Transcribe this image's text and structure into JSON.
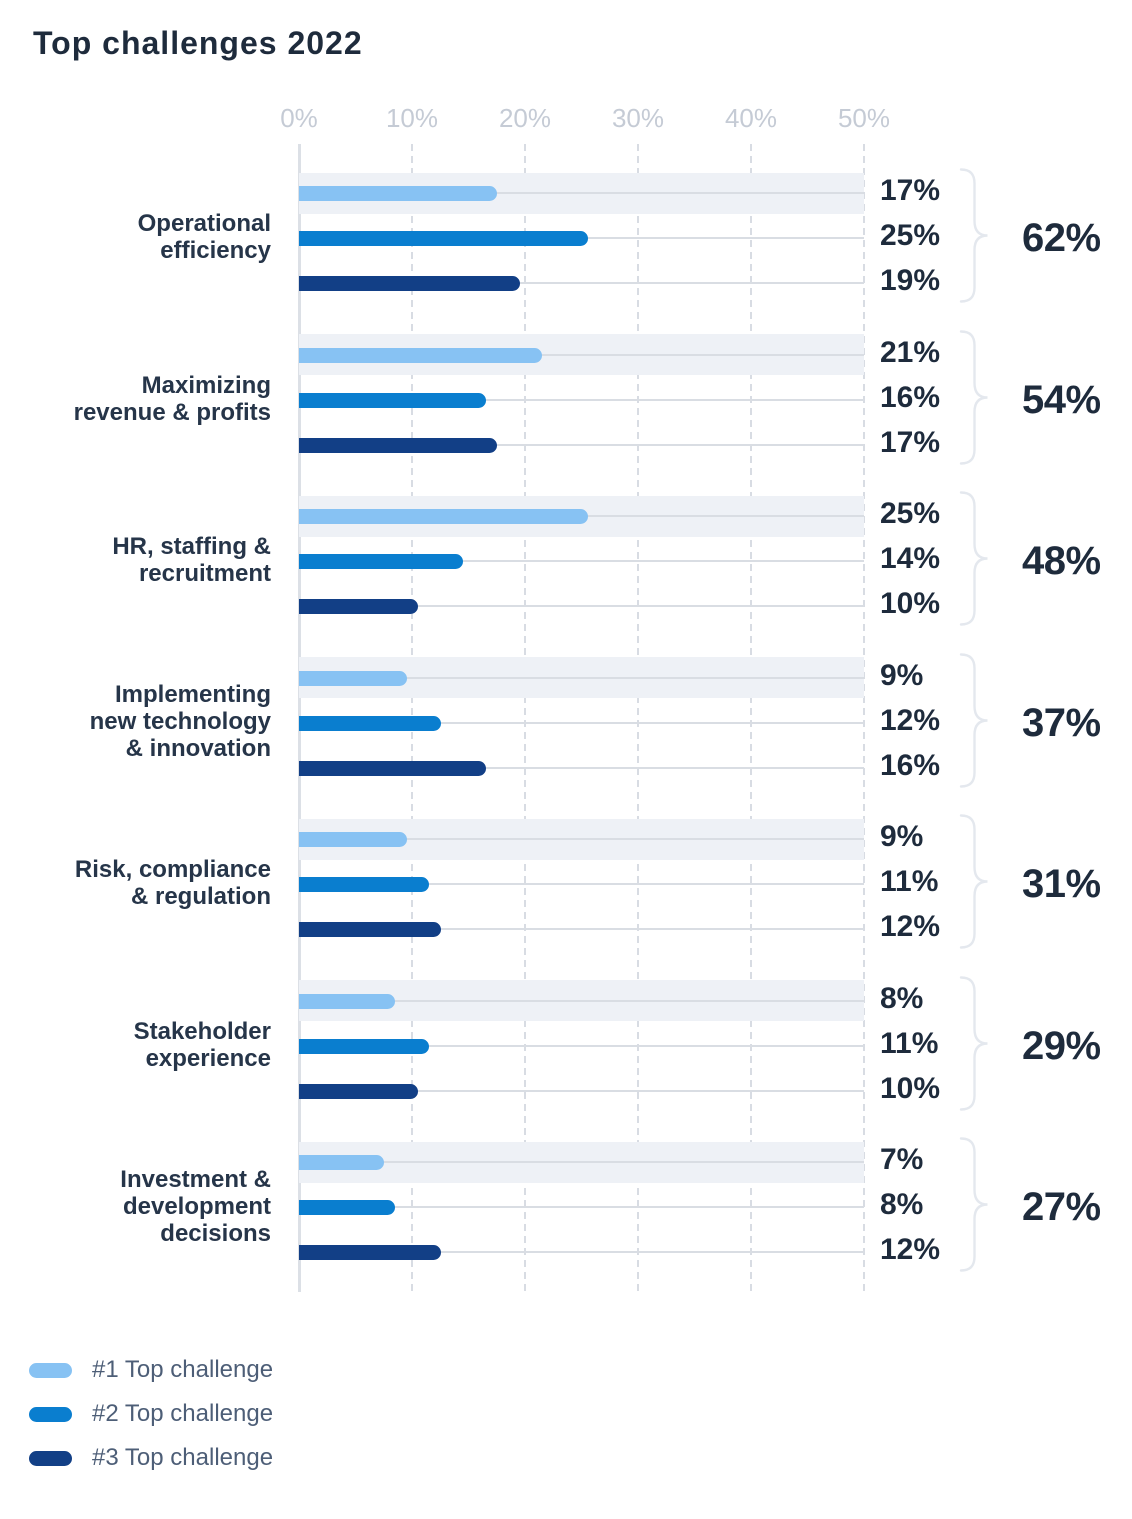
{
  "title": "Top challenges 2022",
  "chart_data": {
    "type": "bar",
    "orientation": "horizontal",
    "title": "Top challenges 2022",
    "x_axis": {
      "ticks": [
        "0%",
        "10%",
        "20%",
        "30%",
        "40%",
        "50%"
      ],
      "min": 0,
      "max": 50,
      "unit": "%",
      "grid": "dashed"
    },
    "groups": [
      {
        "category": "Operational\nefficiency",
        "values": [
          17,
          25,
          19
        ],
        "labels": [
          "17%",
          "25%",
          "19%"
        ],
        "total": "62%"
      },
      {
        "category": "Maximizing\nrevenue & profits",
        "values": [
          21,
          16,
          17
        ],
        "labels": [
          "21%",
          "16%",
          "17%"
        ],
        "total": "54%"
      },
      {
        "category": "HR, staffing &\nrecruitment",
        "values": [
          25,
          14,
          10
        ],
        "labels": [
          "25%",
          "14%",
          "10%"
        ],
        "total": "48%"
      },
      {
        "category": "Implementing\nnew technology\n& innovation",
        "values": [
          9,
          12,
          16
        ],
        "labels": [
          "9%",
          "12%",
          "16%"
        ],
        "total": "37%"
      },
      {
        "category": "Risk, compliance\n& regulation",
        "values": [
          9,
          11,
          12
        ],
        "labels": [
          "9%",
          "11%",
          "12%"
        ],
        "total": "31%"
      },
      {
        "category": "Stakeholder\nexperience",
        "values": [
          8,
          11,
          10
        ],
        "labels": [
          "8%",
          "11%",
          "10%"
        ],
        "total": "29%"
      },
      {
        "category": "Investment &\ndevelopment\ndecisions",
        "values": [
          7,
          8,
          12
        ],
        "labels": [
          "7%",
          "8%",
          "12%"
        ],
        "total": "27%"
      }
    ],
    "series_names": [
      "#1 Top challenge",
      "#2 Top challenge",
      "#3 Top challenge"
    ],
    "legend_position": "bottom-left"
  },
  "colors": {
    "series": [
      "#87C2F3",
      "#0A7ECF",
      "#123F86"
    ],
    "band": "#EEF1F6",
    "grid": "#D8DCE3",
    "axis_text": "#C5CBD5",
    "text_dark": "#1E2B3C",
    "category_text": "#263549",
    "legend_text": "#4D5E77",
    "brace": "#E4E8EE",
    "track": "#D9DDE3"
  }
}
